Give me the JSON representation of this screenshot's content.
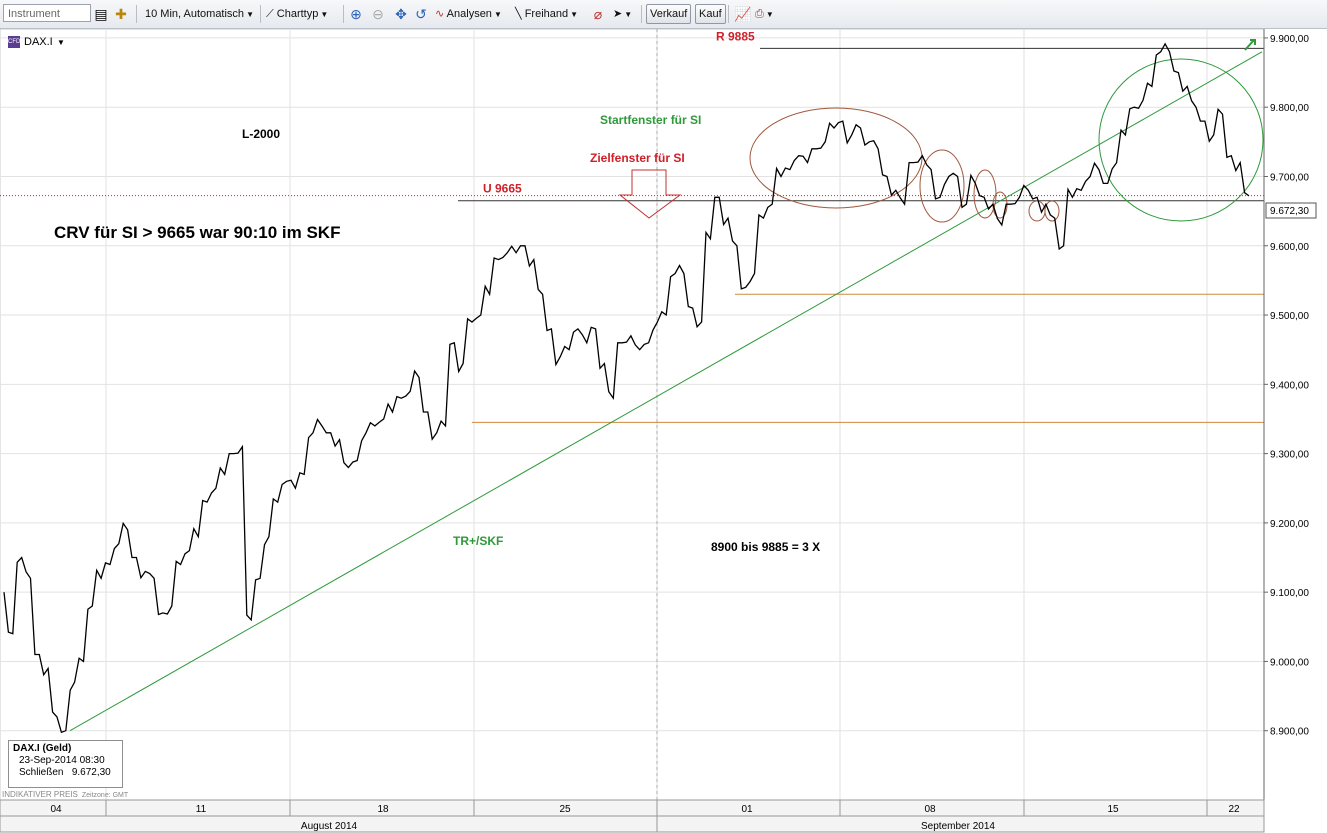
{
  "toolbar": {
    "instrument_placeholder": "Instrument",
    "interval": "10 Min,  Automatisch",
    "charttyp": "Charttyp",
    "analysen": "Analysen",
    "freihand": "Freihand",
    "verkauf": "Verkauf",
    "kauf": "Kauf"
  },
  "instrument": {
    "name": "DAX.I",
    "badge": "CFD"
  },
  "tooltip": {
    "title": "DAX.I (Geld)",
    "datetime": "23-Sep-2014 08:30",
    "close_label": "Schließen",
    "close_value": "9.672,30"
  },
  "footer": {
    "indikativ": "INDIKATIVER PREIS",
    "zeitzone": "Zeitzone: GMT"
  },
  "colors": {
    "price": "#000000",
    "trend": "#2e9a3a",
    "support": "#d08a3c",
    "label_red": "#d0202a",
    "label_green": "#2e9a3a",
    "oval_brown": "#a0583c",
    "oval_green": "#2e9a3a"
  },
  "chart_data": {
    "type": "line",
    "ylim": [
      8800,
      9910
    ],
    "y_ticks": [
      "8.900,00",
      "9.000,00",
      "9.100,00",
      "9.200,00",
      "9.300,00",
      "9.400,00",
      "9.500,00",
      "9.600,00",
      "9.700,00",
      "9.800,00",
      "9.900,00"
    ],
    "y_tick_values": [
      8900,
      9000,
      9100,
      9200,
      9300,
      9400,
      9500,
      9600,
      9700,
      9800,
      9900
    ],
    "x_day_labels": [
      "04",
      "11",
      "18",
      "25",
      "01",
      "08",
      "15",
      "22"
    ],
    "x_month_labels": [
      "August 2014",
      "September 2014"
    ],
    "last_value_label": "9.672,30",
    "last_value": 9672.3,
    "series": [
      {
        "values": [
          9100,
          9040,
          9150,
          9120,
          9010,
          8990,
          8920,
          8900,
          8970,
          9000,
          9080,
          9120,
          9140,
          9170,
          9190,
          9150,
          9130,
          9120,
          9070,
          9080,
          9140,
          9160,
          9180,
          9230,
          9250,
          9270,
          9300,
          9310,
          9060,
          9120,
          9180,
          9230,
          9260,
          9250,
          9270,
          9330,
          9340,
          9330,
          9320,
          9280,
          9290,
          9330,
          9340,
          9350,
          9360,
          9380,
          9390,
          9410,
          9360,
          9330,
          9340,
          9460,
          9430,
          9490,
          9500,
          9530,
          9580,
          9590,
          9590,
          9600,
          9580,
          9530,
          9480,
          9440,
          9450,
          9480,
          9460,
          9480,
          9430,
          9380,
          9460,
          9470,
          9450,
          9460,
          9490,
          9500,
          9560,
          9560,
          9510,
          9490,
          9610,
          9670,
          9640,
          9600,
          9540,
          9560,
          9640,
          9660,
          9700,
          9710,
          9730,
          9720,
          9740,
          9750,
          9770,
          9780,
          9760,
          9770,
          9750,
          9740,
          9700,
          9680,
          9660,
          9720,
          9730,
          9710,
          9670,
          9700,
          9700,
          9660,
          9690,
          9670,
          9660,
          9630,
          9660,
          9670,
          9680,
          9670,
          9660,
          9640,
          9600,
          9670,
          9680,
          9700,
          9710,
          9690,
          9720,
          9760,
          9800,
          9810,
          9830,
          9880,
          9880,
          9850,
          9830,
          9800,
          9780,
          9760,
          9790,
          9730,
          9720,
          9672
        ]
      }
    ],
    "levels": [
      {
        "label": "R 9885",
        "value": 9885
      },
      {
        "label": "U 9665",
        "value": 9665
      },
      {
        "value": 9530
      },
      {
        "value": 9345
      }
    ],
    "trendline": {
      "label": "TR+/SKF",
      "from_value": 8900,
      "to_value": 9880
    },
    "annotations": {
      "l2000": "L-2000",
      "crv": "CRV für SI > 9665 war 90:10 im SKF",
      "startfenster": "Startfenster für SI",
      "zielfenster": "Zielfenster für SI",
      "bis": "8900 bis 9885 = 3 X"
    }
  }
}
